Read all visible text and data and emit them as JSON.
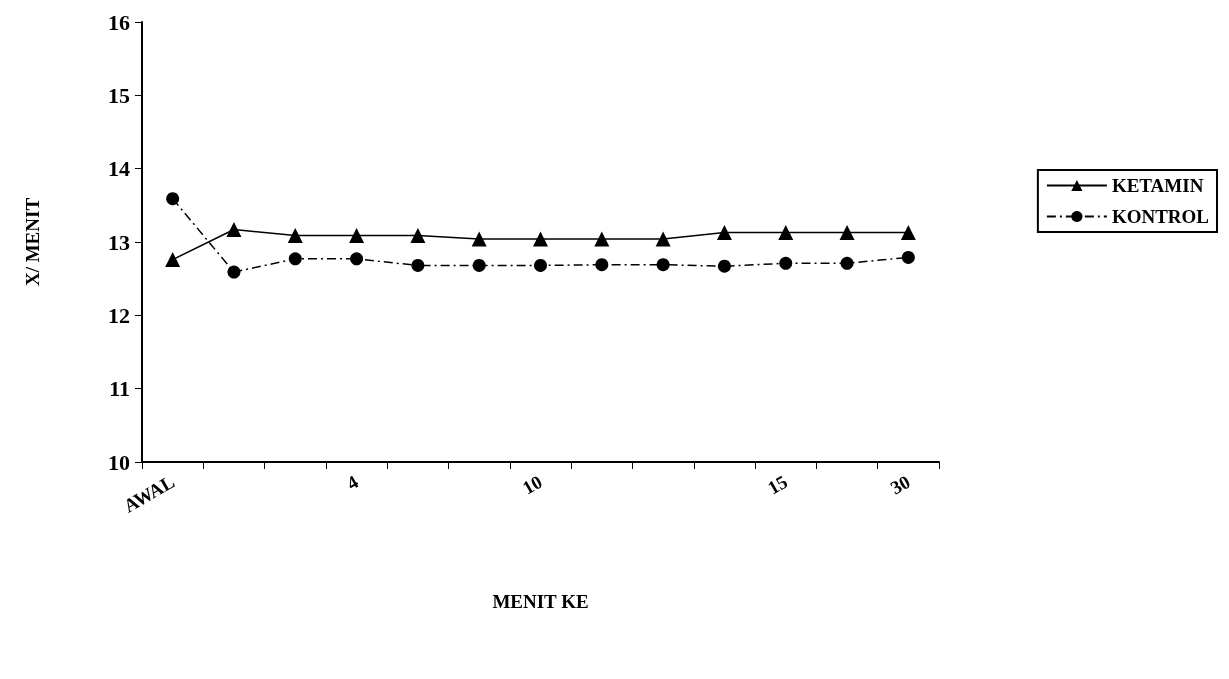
{
  "chart_data": {
    "type": "line",
    "xlabel": "MENIT KE",
    "ylabel": "X/ MENIT",
    "categories": [
      "AWAL",
      null,
      null,
      "4",
      null,
      null,
      "10",
      null,
      null,
      null,
      "15",
      null,
      "30"
    ],
    "series": [
      {
        "name": "KETAMIN",
        "color": "#000000",
        "marker": "triangle",
        "line_style": "solid",
        "values": [
          12.76,
          13.17,
          13.09,
          13.09,
          13.09,
          13.04,
          13.04,
          13.04,
          13.04,
          13.13,
          13.13,
          13.13,
          13.13
        ]
      },
      {
        "name": "KONTROL",
        "color": "#000000",
        "marker": "circle",
        "line_style": "dashed",
        "values": [
          13.59,
          12.59,
          12.77,
          12.77,
          12.68,
          12.68,
          12.68,
          12.69,
          12.69,
          12.67,
          12.71,
          12.71,
          12.79
        ]
      }
    ],
    "ylim": [
      10,
      16
    ],
    "yticks": [
      10,
      11,
      12,
      13,
      14,
      15,
      16
    ],
    "grid": false,
    "legend": "right"
  }
}
